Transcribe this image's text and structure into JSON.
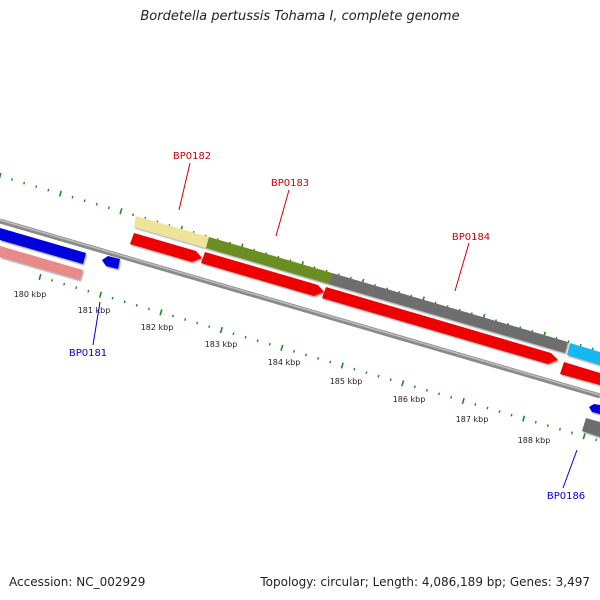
{
  "title": "Bordetella pertussis Tohama I, complete genome",
  "footer": {
    "accession": "Accession: NC_002929",
    "summary": "Topology: circular; Length: 4,086,189 bp; Genes: 3,497"
  },
  "colors": {
    "backbone": "#8a8a8a",
    "tick": "#1f8a1f",
    "gene_label_forward": "#cc0000",
    "gene_label_reverse": "#0000cc",
    "cds_red": "#ee0000",
    "blue": "#0000dd",
    "pink": "#e88a8a",
    "khaki": "#efe39a",
    "olive": "#6b8e23",
    "gray": "#6e6e6e",
    "cyan": "#18b8f0"
  },
  "kbp_labels": [
    "180 kbp",
    "181 kbp",
    "182 kbp",
    "183 kbp",
    "184 kbp",
    "185 kbp",
    "186 kbp",
    "187 kbp",
    "188 kbp"
  ],
  "gene_labels": [
    {
      "text": "BP0181",
      "strand": "reverse"
    },
    {
      "text": "BP0182",
      "strand": "forward"
    },
    {
      "text": "BP0183",
      "strand": "forward"
    },
    {
      "text": "BP0184",
      "strand": "forward"
    },
    {
      "text": "BP0186",
      "strand": "reverse"
    }
  ]
}
